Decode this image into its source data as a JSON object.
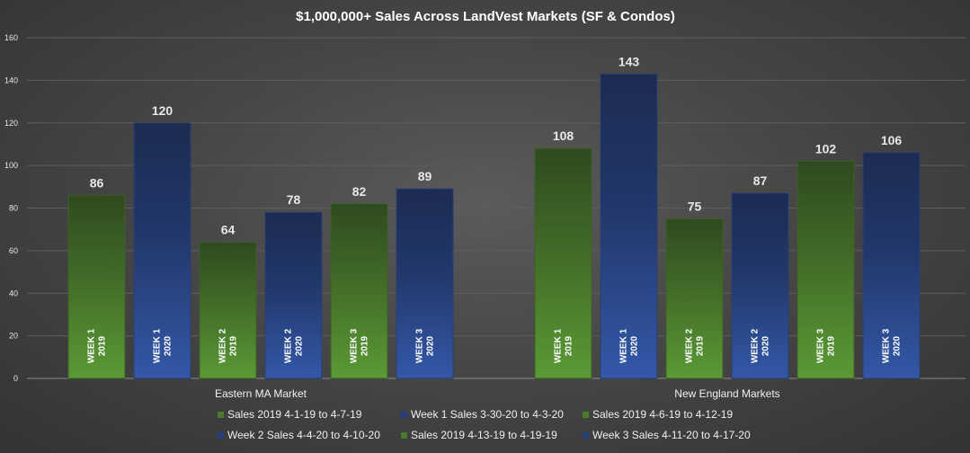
{
  "chart_data": {
    "type": "bar",
    "title": "$1,000,000+ Sales Across LandVest Markets (SF & Condos)",
    "categories": [
      "Eastern MA Market",
      "New England Markets"
    ],
    "ylim": [
      0,
      160
    ],
    "yticks": [
      0,
      20,
      40,
      60,
      80,
      100,
      120,
      140,
      160
    ],
    "grid": true,
    "legend_position": "bottom",
    "series": [
      {
        "name": "Sales 2019 4-1-19 to 4-7-19",
        "values": [
          86,
          108
        ],
        "color": "#4a7a2c",
        "bar_label": [
          "WEEK 1",
          "2019"
        ]
      },
      {
        "name": "Week 1 Sales 3-30-20 to 4-3-20",
        "values": [
          120,
          143
        ],
        "color": "#24407a",
        "bar_label": [
          "WEEK 1",
          "2020"
        ]
      },
      {
        "name": "Sales 2019 4-6-19 to 4-12-19",
        "values": [
          64,
          75
        ],
        "color": "#4a7a2c",
        "bar_label": [
          "WEEK 2",
          "2019"
        ]
      },
      {
        "name": "Week 2 Sales 4-4-20 to 4-10-20",
        "values": [
          78,
          87
        ],
        "color": "#24407a",
        "bar_label": [
          "WEEK 2",
          "2020"
        ]
      },
      {
        "name": "Sales 2019 4-13-19 to 4-19-19",
        "values": [
          82,
          102
        ],
        "color": "#4a7a2c",
        "bar_label": [
          "WEEK 3",
          "2019"
        ]
      },
      {
        "name": "Week 3 Sales 4-11-20 to 4-17-20",
        "values": [
          89,
          106
        ],
        "color": "#24407a",
        "bar_label": [
          "WEEK 3",
          "2020"
        ]
      }
    ]
  }
}
